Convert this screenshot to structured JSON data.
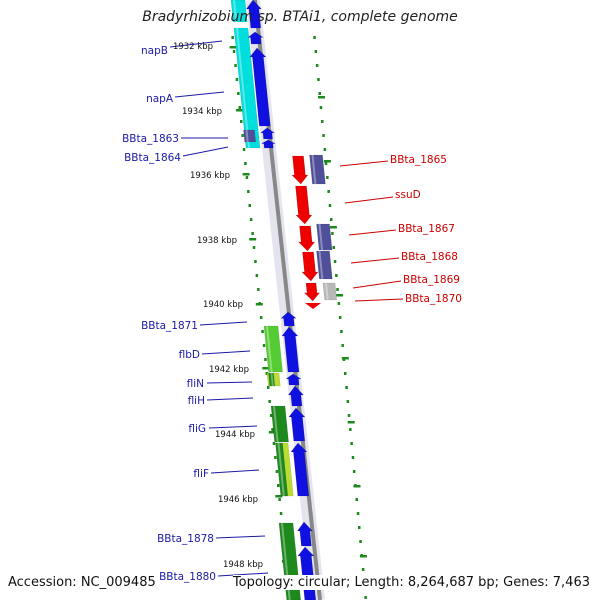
{
  "header": {
    "title": "Bradyrhizobium sp. BTAi1, complete genome"
  },
  "footer": {
    "accession": "Accession: NC_009485",
    "topology": "Topology: circular; Length: 8,264,687 bp; Genes: 7,463"
  },
  "colors": {
    "forward_label": "#1a1aa6",
    "reverse_label": "#cc0000",
    "backbone": "#888888",
    "tick": "#1e8a1e",
    "forward_arrow": "#1010e0",
    "reverse_arrow": "#ee0000",
    "cyan": "#00dede",
    "purple": "#50509a",
    "light_green": "#55cc33",
    "dark_green": "#1e8a1e",
    "yellow_green": "#bbdd33",
    "gray": "#b8b8b8"
  },
  "kbp_labels": [
    "1932 kbp",
    "1934 kbp",
    "1936 kbp",
    "1938 kbp",
    "1940 kbp",
    "1942 kbp",
    "1944 kbp",
    "1946 kbp",
    "1948 kbp"
  ],
  "forward_genes": [
    "napB",
    "napA",
    "BBta_1863",
    "BBta_1864",
    "BBta_1871",
    "flbD",
    "fliN",
    "fliH",
    "fliG",
    "fliF",
    "BBta_1878",
    "BBta_1880"
  ],
  "reverse_genes": [
    "BBta_1865",
    "ssuD",
    "BBta_1867",
    "BBta_1868",
    "BBta_1869",
    "BBta_1870"
  ]
}
